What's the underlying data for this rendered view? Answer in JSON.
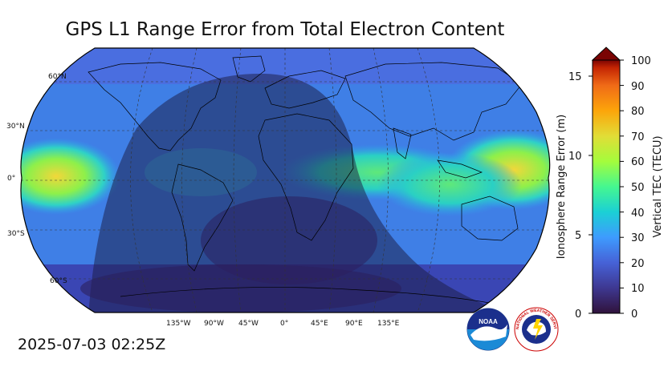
{
  "title": "GPS L1 Range Error from Total Electron Content",
  "timestamp": "2025-07-03 02:25Z",
  "map": {
    "projection": "robinson",
    "lat_labels": [
      "60°N",
      "30°N",
      "0°",
      "30°S",
      "60°S"
    ],
    "lon_labels": [
      "135°W",
      "90°W",
      "45°W",
      "0°",
      "45°E",
      "90°E",
      "135°E"
    ]
  },
  "colorbar": {
    "left_axis_title": "Ionosphere Range Error (m)",
    "right_axis_title": "Vertical TEC (TECU)",
    "left_ticks": [
      "0",
      "5",
      "10",
      "15"
    ],
    "right_ticks": [
      "0",
      "10",
      "20",
      "30",
      "40",
      "50",
      "60",
      "70",
      "80",
      "90",
      "100"
    ],
    "colors": [
      "#30123b",
      "#3e3891",
      "#4662d7",
      "#3e9bfe",
      "#1bd0d5",
      "#45f790",
      "#a4fc3c",
      "#e1dd37",
      "#fca50a",
      "#f06b17",
      "#c42503",
      "#7a0403"
    ]
  },
  "logos": {
    "noaa_text": "NOAA",
    "nws_text": "NATIONAL WEATHER SERVICE"
  },
  "colors": {
    "land_outline": "#000000",
    "grid": "#333333",
    "night_shade": "#1a1a40"
  }
}
